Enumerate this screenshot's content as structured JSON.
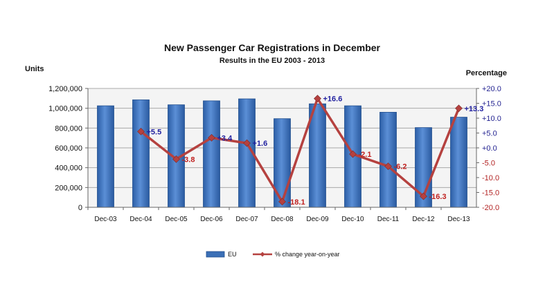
{
  "chart_data": {
    "type": "bar",
    "title": "New Passenger Car Registrations in December",
    "subtitle": "Results in the EU 2003 - 2013",
    "left_axis_label": "Units",
    "right_axis_label": "Percentage",
    "categories": [
      "Dec-03",
      "Dec-04",
      "Dec-05",
      "Dec-06",
      "Dec-07",
      "Dec-08",
      "Dec-09",
      "Dec-10",
      "Dec-11",
      "Dec-12",
      "Dec-13"
    ],
    "ylim": [
      0,
      1200000
    ],
    "y2lim": [
      -20,
      20
    ],
    "left_ticks": [
      "0",
      "200,000",
      "400,000",
      "600,000",
      "800,000",
      "1,000,000",
      "1,200,000"
    ],
    "right_ticks": [
      "-20.0",
      "-15.0",
      "-10.0",
      "-5.0",
      "+0.0",
      "+5.0",
      "+10.0",
      "+15.0",
      "+20.0"
    ],
    "series": [
      {
        "name": "EU",
        "type": "bar",
        "axis": "left",
        "values": [
          1025000,
          1085000,
          1035000,
          1075000,
          1095000,
          895000,
          1045000,
          1025000,
          960000,
          805000,
          910000
        ],
        "color": "#3b6fb6"
      },
      {
        "name": "% change year-on-year",
        "type": "line",
        "axis": "right",
        "values": [
          null,
          5.5,
          -3.8,
          3.4,
          1.6,
          -18.1,
          16.6,
          -2.1,
          -6.2,
          -16.3,
          13.3
        ],
        "labels": [
          null,
          "+5.5",
          "-3.8",
          "+3.4",
          "+1.6",
          "-18.1",
          "+16.6",
          "-2.1",
          "-6.2",
          "-16.3",
          "+13.3"
        ],
        "color": "#b5413f"
      }
    ],
    "colors": {
      "positive_label": "#1f1f9f",
      "negative_label": "#c0201f"
    },
    "grid": true,
    "legend_position": "bottom"
  }
}
